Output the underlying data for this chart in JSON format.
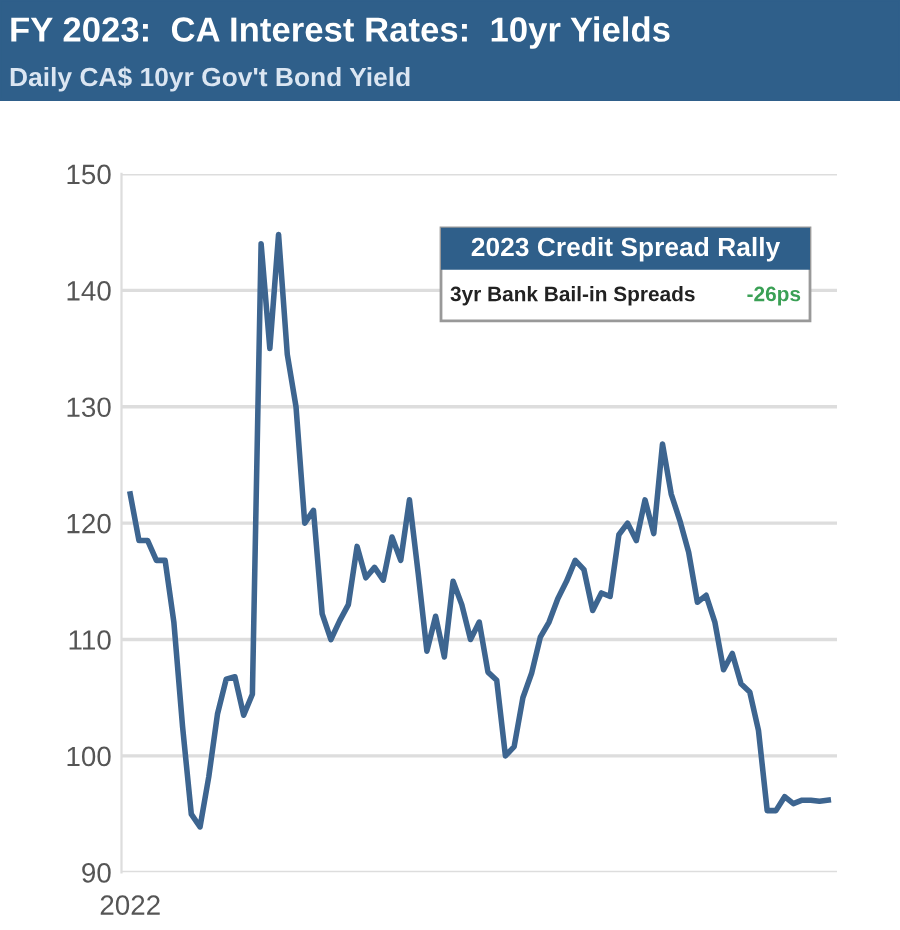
{
  "chart_data": {
    "type": "line",
    "title": "FY 2023:  CA Interest Rates:  10yr Yields",
    "subtitle": "Daily CA$ 10yr Gov't Bond Yield",
    "annotations": [
      "2023 Credit Spread Rally",
      "3yr Bank Bail-in Spreads",
      "-26ps"
    ],
    "categories": [
      "2022",
      null,
      null,
      null,
      null,
      null,
      null,
      null,
      null,
      null,
      null,
      null,
      null,
      null,
      null,
      null,
      null,
      null,
      null,
      null,
      null,
      null,
      null,
      null,
      null,
      null,
      null,
      null,
      null,
      null,
      null,
      null,
      null,
      null,
      null,
      null,
      null,
      null,
      null,
      null,
      null,
      null,
      null,
      null,
      null,
      null,
      null,
      null,
      null,
      null,
      null,
      null,
      null,
      null,
      null,
      null,
      null,
      null,
      null,
      null,
      null,
      null,
      null,
      null,
      null,
      null,
      null,
      null,
      null,
      null,
      null,
      null,
      null,
      null,
      null,
      null,
      null,
      null,
      null,
      null,
      null
    ],
    "series": [
      {
        "color": "#3d6590",
        "values": [
          122.5,
          118.5,
          118.5,
          116.8,
          116.8,
          111.5,
          102.5,
          95,
          93.9,
          98.2,
          103.6,
          106.6,
          106.8,
          103.5,
          105.3,
          144,
          135,
          144.8,
          134.5,
          130,
          120,
          121.1,
          112.2,
          110,
          111.6,
          113,
          118,
          115.3,
          116.2,
          115.1,
          118.8,
          116.8,
          122,
          115.7,
          109,
          112,
          108.5,
          115,
          113,
          110,
          111.5,
          107.2,
          106.5,
          100,
          100.8,
          105,
          107.1,
          110.2,
          111.5,
          113.5,
          115,
          116.8,
          116,
          112.5,
          114,
          113.7,
          119,
          120,
          118.5,
          122,
          119.1,
          126.8,
          122.5,
          120.2,
          117.5,
          113.2,
          113.8,
          111.5,
          107.4,
          108.8,
          106.2,
          105.5,
          102.2,
          95.3,
          95.3,
          96.5,
          95.9,
          96.2,
          96.2,
          96.1,
          96.2
        ]
      }
    ],
    "ylim": [
      90,
      150
    ],
    "yticks": [
      90,
      100,
      110,
      120,
      130,
      140,
      150
    ],
    "grid": "y",
    "marker": "none",
    "line_style": "solid"
  }
}
